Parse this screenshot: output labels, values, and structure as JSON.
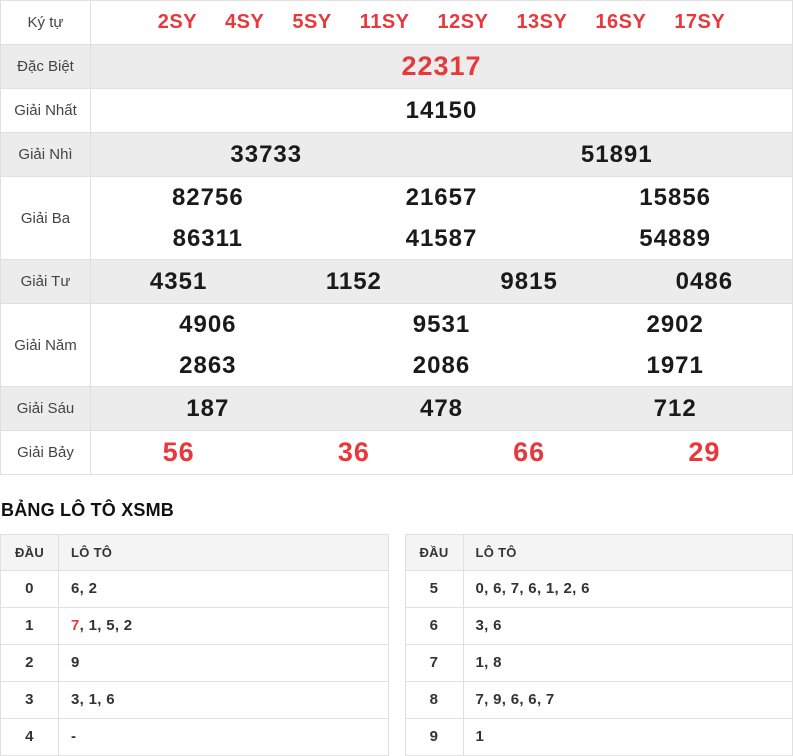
{
  "colors": {
    "red": "#e8383c",
    "border": "#e0e0e0",
    "shaded_row_bg": "#ececec",
    "table_header_bg": "#f4f4f4"
  },
  "results_table": {
    "rows": [
      {
        "id": "ky-tu",
        "label": "Ký tự",
        "kind": "codes",
        "red": true,
        "values": [
          "2SY",
          "4SY",
          "5SY",
          "11SY",
          "12SY",
          "13SY",
          "16SY",
          "17SY"
        ]
      },
      {
        "id": "dac-biet",
        "label": "Đặc Biệt",
        "cols": 1,
        "red": true,
        "large": true,
        "values": [
          "22317"
        ]
      },
      {
        "id": "giai-nhat",
        "label": "Giải Nhất",
        "cols": 1,
        "values": [
          "14150"
        ]
      },
      {
        "id": "giai-nhi",
        "label": "Giải Nhì",
        "cols": 2,
        "values": [
          "33733",
          "51891"
        ]
      },
      {
        "id": "giai-ba",
        "label": "Giải Ba",
        "cols": 3,
        "values": [
          "82756",
          "21657",
          "15856",
          "86311",
          "41587",
          "54889"
        ]
      },
      {
        "id": "giai-tu",
        "label": "Giải Tư",
        "cols": 4,
        "values": [
          "4351",
          "1152",
          "9815",
          "0486"
        ]
      },
      {
        "id": "giai-nam",
        "label": "Giải Năm",
        "cols": 3,
        "values": [
          "4906",
          "9531",
          "2902",
          "2863",
          "2086",
          "1971"
        ]
      },
      {
        "id": "giai-sau",
        "label": "Giải Sáu",
        "cols": 3,
        "values": [
          "187",
          "478",
          "712"
        ]
      },
      {
        "id": "giai-bay",
        "label": "Giải Bảy",
        "cols": 4,
        "red": true,
        "large": true,
        "values": [
          "56",
          "36",
          "66",
          "29"
        ]
      }
    ]
  },
  "loto_section": {
    "heading": "BẢNG LÔ TÔ XSMB",
    "columns": {
      "dau": "ĐẦU",
      "loto": "LÔ TÔ"
    },
    "tables": [
      {
        "side": "left",
        "rows": [
          {
            "dau": "0",
            "parts": [
              {
                "text": "6"
              },
              {
                "text": "2"
              }
            ]
          },
          {
            "dau": "1",
            "parts": [
              {
                "text": "7",
                "red": true
              },
              {
                "text": "1"
              },
              {
                "text": "5"
              },
              {
                "text": "2"
              }
            ]
          },
          {
            "dau": "2",
            "parts": [
              {
                "text": "9"
              }
            ]
          },
          {
            "dau": "3",
            "parts": [
              {
                "text": "3"
              },
              {
                "text": "1"
              },
              {
                "text": "6"
              }
            ]
          },
          {
            "dau": "4",
            "parts": [
              {
                "text": "-"
              }
            ]
          }
        ]
      },
      {
        "side": "right",
        "rows": [
          {
            "dau": "5",
            "parts": [
              {
                "text": "0"
              },
              {
                "text": "6"
              },
              {
                "text": "7"
              },
              {
                "text": "6"
              },
              {
                "text": "1"
              },
              {
                "text": "2"
              },
              {
                "text": "6"
              }
            ]
          },
          {
            "dau": "6",
            "parts": [
              {
                "text": "3"
              },
              {
                "text": "6"
              }
            ]
          },
          {
            "dau": "7",
            "parts": [
              {
                "text": "1"
              },
              {
                "text": "8"
              }
            ]
          },
          {
            "dau": "8",
            "parts": [
              {
                "text": "7"
              },
              {
                "text": "9"
              },
              {
                "text": "6"
              },
              {
                "text": "6"
              },
              {
                "text": "7"
              }
            ]
          },
          {
            "dau": "9",
            "parts": [
              {
                "text": "1"
              }
            ]
          }
        ]
      }
    ]
  }
}
